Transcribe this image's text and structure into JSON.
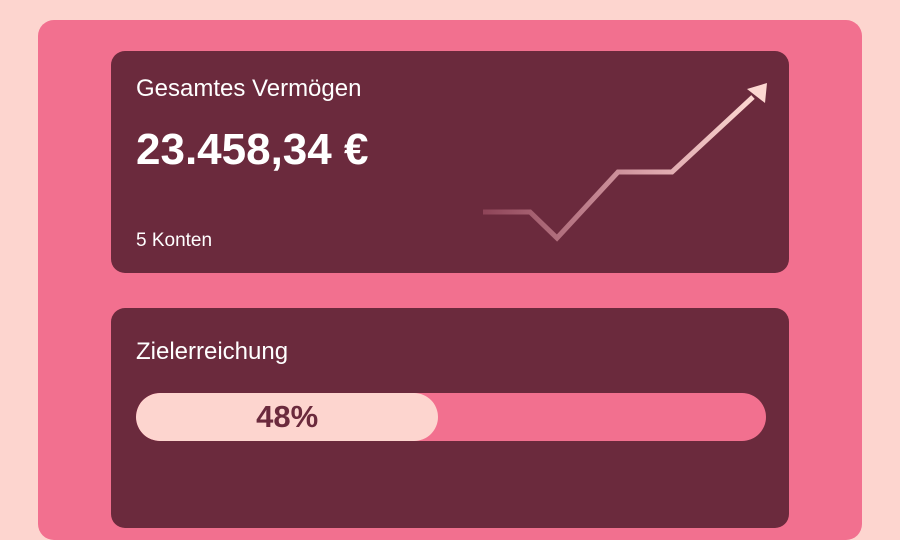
{
  "wealth_card": {
    "title": "Gesamtes Vermögen",
    "amount": "23.458,34 €",
    "accounts": "5 Konten"
  },
  "goal_card": {
    "title": "Zielerreichung",
    "progress": {
      "value": 48,
      "value_label": "48%"
    }
  }
}
